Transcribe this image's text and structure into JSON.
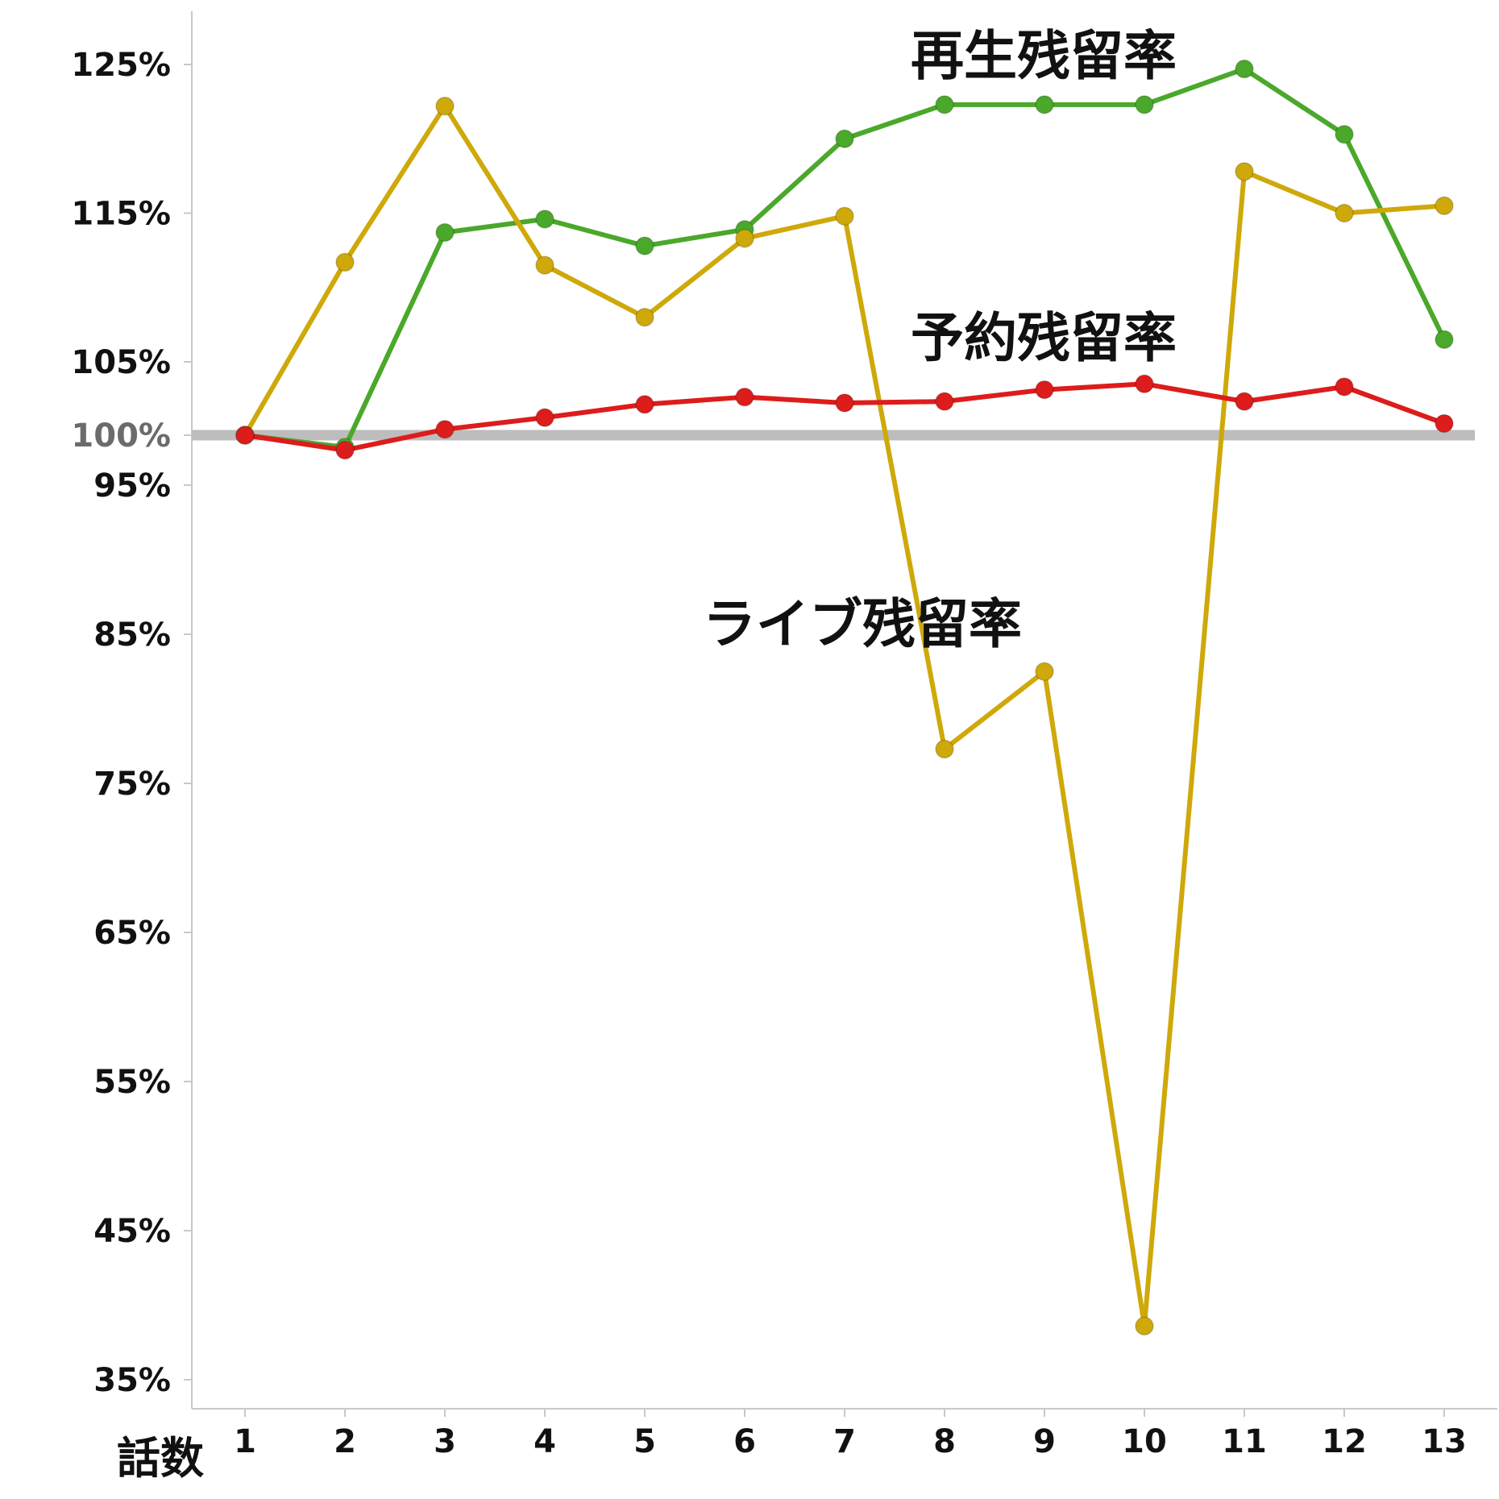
{
  "chart_data": {
    "type": "line",
    "xlabel": "話数",
    "ylabel": "",
    "title": "",
    "x": [
      1,
      2,
      3,
      4,
      5,
      6,
      7,
      8,
      9,
      10,
      11,
      12,
      13
    ],
    "x_tick_labels": [
      "1",
      "2",
      "3",
      "4",
      "5",
      "6",
      "7",
      "8",
      "9",
      "10",
      "11",
      "12",
      "13"
    ],
    "y_ticks": [
      {
        "value": 35,
        "label": "35%"
      },
      {
        "value": 45,
        "label": "45%"
      },
      {
        "value": 55,
        "label": "55%"
      },
      {
        "value": 65,
        "label": "65%"
      },
      {
        "value": 75,
        "label": "75%"
      },
      {
        "value": 85,
        "label": "85%"
      },
      {
        "value": 95,
        "label": "95%"
      },
      {
        "value": 100,
        "label": "100%"
      },
      {
        "value": 105,
        "label": "105%"
      },
      {
        "value": 115,
        "label": "115%"
      },
      {
        "value": 125,
        "label": "125%"
      }
    ],
    "y_axis_scale": "piecewise: 35–95 and 105–125 at one spacing per 10%, 95–105 expanded around the 100% reference line",
    "reference_line": {
      "value": 100,
      "color": "#bdbdbd"
    },
    "grid": false,
    "series": [
      {
        "name": "再生残留率",
        "color": "#4aa82a",
        "values": [
          100.0,
          98.8,
          113.7,
          114.6,
          112.8,
          113.9,
          120.0,
          122.3,
          122.3,
          122.3,
          124.7,
          120.3,
          106.5
        ]
      },
      {
        "name": "予約残留率",
        "color": "#dd1c1c",
        "values": [
          100.0,
          98.5,
          100.4,
          101.2,
          102.1,
          102.6,
          102.2,
          102.3,
          103.1,
          103.5,
          102.3,
          103.3,
          100.8
        ]
      },
      {
        "name": "ライブ残留率",
        "color": "#cfa80a",
        "values": [
          100.0,
          111.7,
          122.2,
          111.5,
          108.0,
          113.3,
          114.8,
          77.3,
          82.5,
          38.6,
          117.8,
          115.0,
          115.5
        ]
      }
    ],
    "series_label_positions": "再生残留率 near top right, 予約残留率 above red line mid-right, ライブ残留率 centre of plot"
  }
}
